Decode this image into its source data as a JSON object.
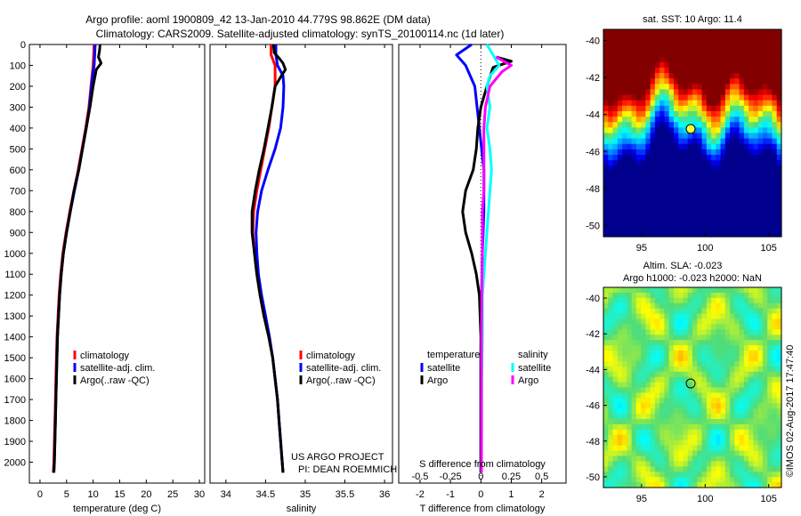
{
  "title": {
    "line1": "Argo profile: aoml 1900809_42 13-Jan-2010 44.779S 98.862E (DM data)",
    "line2": "Climatology: CARS2009. Satellite-adjusted climatology: synTS_20100114.nc (1d later)"
  },
  "colors": {
    "climatology": "#ff0000",
    "satellite_adj": "#0000ff",
    "argo": "#000000",
    "satellite_s": "#00ffff",
    "argo_s": "#ff00ff"
  },
  "chart_data": [
    {
      "type": "line",
      "name": "temperature-profile",
      "xlabel": "temperature (deg C)",
      "xlim": [
        -2,
        31
      ],
      "xticks": [
        0,
        5,
        10,
        15,
        20,
        25,
        30
      ],
      "ylim": [
        2100,
        0
      ],
      "yticks": [
        0,
        100,
        200,
        300,
        400,
        500,
        600,
        700,
        800,
        900,
        1000,
        1100,
        1200,
        1300,
        1400,
        1500,
        1600,
        1700,
        1800,
        1900,
        2000
      ],
      "legend": {
        "placement": "lower-center",
        "entries": [
          "climatology",
          "satellite-adj. clim.",
          "Argo(..raw -QC)"
        ]
      },
      "series": [
        {
          "name": "climatology",
          "color": "#ff0000",
          "points": [
            [
              10.2,
              0
            ],
            [
              10.1,
              50
            ],
            [
              10.0,
              100
            ],
            [
              9.8,
              150
            ],
            [
              9.6,
              200
            ],
            [
              9.2,
              300
            ],
            [
              8.6,
              400
            ],
            [
              7.9,
              500
            ],
            [
              7.2,
              600
            ],
            [
              6.4,
              700
            ],
            [
              5.6,
              800
            ],
            [
              4.9,
              900
            ],
            [
              4.3,
              1000
            ],
            [
              3.9,
              1100
            ],
            [
              3.6,
              1200
            ],
            [
              3.4,
              1300
            ],
            [
              3.2,
              1400
            ],
            [
              3.1,
              1500
            ],
            [
              3.0,
              1600
            ],
            [
              2.9,
              1700
            ],
            [
              2.8,
              1800
            ],
            [
              2.7,
              1900
            ],
            [
              2.6,
              2000
            ],
            [
              2.5,
              2050
            ]
          ]
        },
        {
          "name": "satellite-adj. clim.",
          "color": "#0000ff",
          "points": [
            [
              10.4,
              0
            ],
            [
              10.3,
              50
            ],
            [
              10.2,
              100
            ],
            [
              9.9,
              150
            ],
            [
              9.7,
              200
            ],
            [
              9.3,
              300
            ],
            [
              8.7,
              400
            ],
            [
              8.0,
              500
            ],
            [
              7.3,
              600
            ],
            [
              6.5,
              700
            ],
            [
              5.7,
              800
            ],
            [
              5.0,
              900
            ],
            [
              4.4,
              1000
            ],
            [
              4.0,
              1100
            ],
            [
              3.7,
              1200
            ],
            [
              3.5,
              1300
            ],
            [
              3.3,
              1400
            ],
            [
              3.2,
              1500
            ],
            [
              3.1,
              1600
            ],
            [
              3.0,
              1700
            ],
            [
              2.9,
              1800
            ],
            [
              2.8,
              1900
            ],
            [
              2.7,
              2000
            ],
            [
              2.6,
              2050
            ]
          ]
        },
        {
          "name": "Argo(..raw -QC)",
          "color": "#000000",
          "points": [
            [
              11.3,
              0
            ],
            [
              11.2,
              30
            ],
            [
              11.0,
              60
            ],
            [
              11.5,
              90
            ],
            [
              10.6,
              120
            ],
            [
              10.0,
              200
            ],
            [
              9.4,
              300
            ],
            [
              8.7,
              400
            ],
            [
              8.0,
              500
            ],
            [
              7.3,
              600
            ],
            [
              6.4,
              700
            ],
            [
              5.7,
              800
            ],
            [
              5.0,
              900
            ],
            [
              4.4,
              1000
            ],
            [
              4.0,
              1100
            ],
            [
              3.7,
              1200
            ],
            [
              3.5,
              1300
            ],
            [
              3.3,
              1400
            ],
            [
              3.2,
              1500
            ],
            [
              3.1,
              1600
            ],
            [
              3.0,
              1700
            ],
            [
              2.9,
              1800
            ],
            [
              2.8,
              1900
            ],
            [
              2.7,
              2000
            ],
            [
              2.6,
              2050
            ]
          ]
        }
      ]
    },
    {
      "type": "line",
      "name": "salinity-profile",
      "xlabel": "salinity",
      "xlim": [
        33.8,
        36.1
      ],
      "xticks": [
        34,
        34.5,
        35,
        35.5,
        36
      ],
      "ylim": [
        2100,
        0
      ],
      "legend": {
        "placement": "lower-right",
        "entries": [
          "climatology",
          "satellite-adj. clim.",
          "Argo(..raw -QC)"
        ]
      },
      "annotation": {
        "line1": "US ARGO PROJECT",
        "line2": "PI: DEAN ROEMMICH"
      },
      "series": [
        {
          "name": "climatology",
          "color": "#ff0000",
          "points": [
            [
              34.57,
              0
            ],
            [
              34.57,
              50
            ],
            [
              34.62,
              100
            ],
            [
              34.62,
              200
            ],
            [
              34.58,
              300
            ],
            [
              34.54,
              400
            ],
            [
              34.49,
              500
            ],
            [
              34.44,
              600
            ],
            [
              34.39,
              700
            ],
            [
              34.35,
              800
            ],
            [
              34.34,
              900
            ],
            [
              34.36,
              1000
            ],
            [
              34.39,
              1100
            ],
            [
              34.43,
              1200
            ],
            [
              34.48,
              1300
            ],
            [
              34.54,
              1400
            ],
            [
              34.59,
              1500
            ],
            [
              34.62,
              1600
            ],
            [
              34.65,
              1700
            ],
            [
              34.67,
              1800
            ],
            [
              34.69,
              1900
            ],
            [
              34.71,
              2000
            ],
            [
              34.72,
              2050
            ]
          ]
        },
        {
          "name": "satellite-adj. clim.",
          "color": "#0000ff",
          "points": [
            [
              34.63,
              0
            ],
            [
              34.63,
              50
            ],
            [
              34.65,
              100
            ],
            [
              34.72,
              150
            ],
            [
              34.73,
              200
            ],
            [
              34.72,
              300
            ],
            [
              34.69,
              400
            ],
            [
              34.62,
              500
            ],
            [
              34.53,
              600
            ],
            [
              34.45,
              700
            ],
            [
              34.4,
              800
            ],
            [
              34.38,
              900
            ],
            [
              34.39,
              1000
            ],
            [
              34.41,
              1100
            ],
            [
              34.45,
              1200
            ],
            [
              34.5,
              1300
            ],
            [
              34.55,
              1400
            ],
            [
              34.59,
              1500
            ],
            [
              34.62,
              1600
            ],
            [
              34.65,
              1700
            ],
            [
              34.67,
              1800
            ],
            [
              34.69,
              1900
            ],
            [
              34.71,
              2000
            ],
            [
              34.72,
              2050
            ]
          ]
        },
        {
          "name": "Argo(..raw -QC)",
          "color": "#000000",
          "points": [
            [
              34.6,
              0
            ],
            [
              34.61,
              40
            ],
            [
              34.68,
              70
            ],
            [
              34.72,
              90
            ],
            [
              34.75,
              120
            ],
            [
              34.7,
              150
            ],
            [
              34.62,
              200
            ],
            [
              34.58,
              300
            ],
            [
              34.53,
              400
            ],
            [
              34.48,
              500
            ],
            [
              34.42,
              600
            ],
            [
              34.37,
              700
            ],
            [
              34.33,
              800
            ],
            [
              34.33,
              900
            ],
            [
              34.36,
              1000
            ],
            [
              34.39,
              1100
            ],
            [
              34.43,
              1200
            ],
            [
              34.48,
              1300
            ],
            [
              34.54,
              1400
            ],
            [
              34.59,
              1500
            ],
            [
              34.62,
              1600
            ],
            [
              34.65,
              1700
            ],
            [
              34.67,
              1800
            ],
            [
              34.69,
              1900
            ],
            [
              34.71,
              2000
            ],
            [
              34.72,
              2050
            ]
          ]
        }
      ]
    },
    {
      "type": "line",
      "name": "difference-profile",
      "xlabel": "T difference from climatology",
      "xlabel_top": "S difference from climatology",
      "xlim": [
        -2.7,
        2.8
      ],
      "xticks": [
        -2,
        -1,
        0,
        1,
        2
      ],
      "xticks_s_labels": [
        "-0.5",
        "-0.25",
        "0",
        "0.25",
        "0.5"
      ],
      "ylim": [
        2100,
        0
      ],
      "legend": {
        "placement": "lower-center",
        "temperature_heading": "temperature",
        "salinity_heading": "salinity",
        "entries_t": [
          "satellite",
          "Argo"
        ],
        "entries_s": [
          "satellite",
          "Argo"
        ]
      },
      "series": [
        {
          "name": "T satellite",
          "color": "#0000ff",
          "points": [
            [
              -0.3,
              0
            ],
            [
              -0.8,
              50
            ],
            [
              -0.5,
              100
            ],
            [
              -0.2,
              200
            ],
            [
              -0.05,
              400
            ],
            [
              0.1,
              600
            ],
            [
              0.1,
              800
            ],
            [
              0.05,
              1000
            ],
            [
              0.02,
              1200
            ],
            [
              0,
              1500
            ],
            [
              0,
              2050
            ]
          ]
        },
        {
          "name": "T Argo",
          "color": "#000000",
          "points": [
            [
              0.5,
              60
            ],
            [
              1.0,
              80
            ],
            [
              0.4,
              110
            ],
            [
              0.2,
              200
            ],
            [
              0.0,
              300
            ],
            [
              -0.1,
              400
            ],
            [
              -0.15,
              500
            ],
            [
              -0.25,
              600
            ],
            [
              -0.5,
              700
            ],
            [
              -0.6,
              800
            ],
            [
              -0.5,
              900
            ],
            [
              -0.3,
              1000
            ],
            [
              -0.15,
              1100
            ],
            [
              -0.05,
              1200
            ],
            [
              0,
              1400
            ],
            [
              0,
              2050
            ]
          ]
        },
        {
          "name": "S satellite",
          "color": "#00ffff",
          "points": [
            [
              0.2,
              0
            ],
            [
              0.4,
              50
            ],
            [
              0.6,
              100
            ],
            [
              0.3,
              150
            ],
            [
              0.2,
              200
            ],
            [
              0.3,
              300
            ],
            [
              0.2,
              400
            ],
            [
              0.3,
              500
            ],
            [
              0.35,
              600
            ],
            [
              0.3,
              700
            ],
            [
              0.25,
              800
            ],
            [
              0.2,
              900
            ],
            [
              0.15,
              1000
            ],
            [
              0.1,
              1100
            ],
            [
              0.05,
              1200
            ],
            [
              0.05,
              1400
            ],
            [
              0.03,
              1600
            ],
            [
              0.02,
              2050
            ]
          ]
        },
        {
          "name": "S Argo",
          "color": "#ff00ff",
          "points": [
            [
              0.5,
              60
            ],
            [
              1.0,
              100
            ],
            [
              0.7,
              130
            ],
            [
              0.3,
              200
            ],
            [
              0.15,
              300
            ],
            [
              0.1,
              400
            ],
            [
              0.1,
              500
            ],
            [
              0.1,
              600
            ],
            [
              0.1,
              700
            ],
            [
              0.05,
              800
            ],
            [
              0.05,
              1000
            ],
            [
              0.03,
              1200
            ],
            [
              0.02,
              1400
            ],
            [
              0.02,
              2050
            ]
          ]
        }
      ]
    },
    {
      "type": "heatmap",
      "name": "sst-map",
      "title": "sat. SST: 10 Argo: 11.4",
      "xlim": [
        92,
        106
      ],
      "ylim": [
        -50.6,
        -39.4
      ],
      "xticks": [
        95,
        100,
        105
      ],
      "yticks": [
        -40,
        -42,
        -44,
        -46,
        -48,
        -50
      ],
      "marker": {
        "lon": 98.862,
        "lat": -44.779
      }
    },
    {
      "type": "heatmap",
      "name": "sla-map",
      "title_line1": "Altim. SLA: -0.023",
      "title_line2": "Argo h1000: -0.023 h2000: NaN",
      "xlim": [
        92,
        106
      ],
      "ylim": [
        -50.6,
        -39.4
      ],
      "xticks": [
        95,
        100,
        105
      ],
      "yticks": [
        -40,
        -42,
        -44,
        -46,
        -48,
        -50
      ],
      "marker": {
        "lon": 98.862,
        "lat": -44.779
      }
    }
  ],
  "credit": "©IMOS 02-Aug-2017 17:47:40"
}
